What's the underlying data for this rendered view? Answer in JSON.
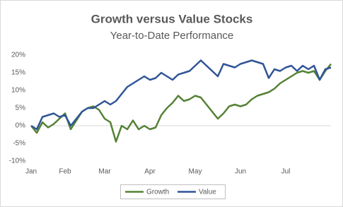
{
  "chart_data": {
    "type": "line",
    "title": "Growth versus Value Stocks",
    "subtitle": "Year-to-Date Performance",
    "categories": [
      "Jan",
      null,
      null,
      null,
      null,
      null,
      "Feb",
      null,
      null,
      null,
      null,
      null,
      null,
      "Mar",
      null,
      null,
      null,
      null,
      null,
      null,
      null,
      "Apr",
      null,
      null,
      null,
      null,
      null,
      null,
      null,
      "May",
      null,
      null,
      null,
      null,
      null,
      null,
      null,
      "Jun",
      null,
      null,
      null,
      null,
      null,
      null,
      null,
      "Jul",
      null,
      null,
      null,
      null,
      null,
      null,
      null,
      null
    ],
    "series": [
      {
        "name": "Growth",
        "color": "#548235",
        "values": [
          0,
          -2,
          1,
          -0.5,
          0.5,
          2,
          3.5,
          -1,
          1.5,
          4,
          5,
          5.5,
          4.5,
          2,
          1,
          -4.5,
          0,
          -1,
          1.5,
          -1,
          0,
          -1,
          -0.5,
          3,
          5,
          6.5,
          8.5,
          7,
          7.5,
          8.5,
          8,
          6,
          4,
          2,
          3.5,
          5.5,
          6,
          5.5,
          6,
          7.5,
          8.5,
          9,
          9.5,
          10.5,
          12,
          13,
          14,
          15,
          15.5,
          15,
          15.5,
          13,
          15.5,
          17.5
        ]
      },
      {
        "name": "Value",
        "color": "#2f5597",
        "values": [
          0,
          -1,
          2.5,
          3,
          3.5,
          2.5,
          3,
          0,
          2,
          4,
          5,
          5,
          6,
          7,
          6,
          7,
          9,
          11,
          12,
          13,
          14,
          13,
          13.5,
          15,
          14,
          13,
          14.5,
          15,
          15.5,
          17,
          18.5,
          17,
          15.5,
          14,
          17.5,
          17,
          16.5,
          17.5,
          18,
          18.5,
          18,
          17.5,
          13.5,
          16,
          15.5,
          16.5,
          17,
          15.5,
          17,
          16,
          17,
          13,
          16,
          16.5
        ]
      }
    ],
    "ylim": [
      -10,
      20
    ],
    "yticks": [
      {
        "value": -10,
        "label": "-10%"
      },
      {
        "value": -5,
        "label": "-5%"
      },
      {
        "value": 0,
        "label": "0%"
      },
      {
        "value": 5,
        "label": "5%"
      },
      {
        "value": 10,
        "label": "10%"
      },
      {
        "value": 15,
        "label": "15%"
      },
      {
        "value": 20,
        "label": "20%"
      }
    ],
    "grid": false,
    "legend": "bottom"
  }
}
